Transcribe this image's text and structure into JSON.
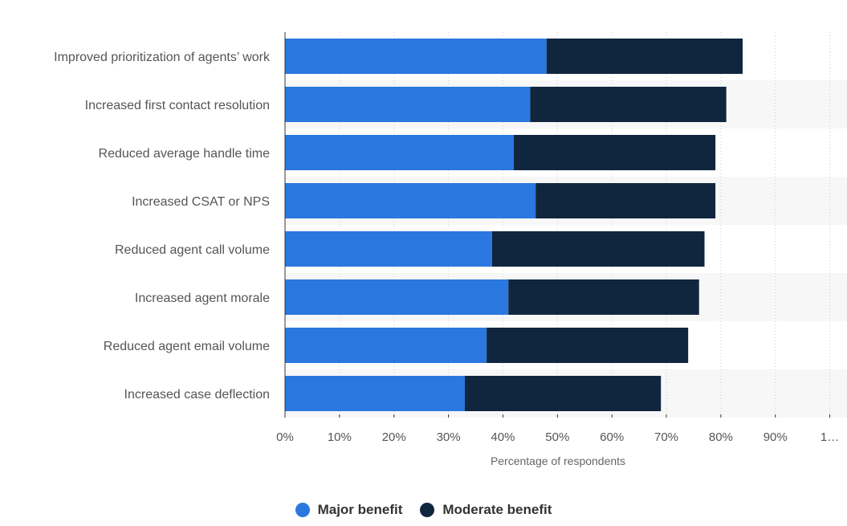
{
  "chart_data": {
    "type": "bar",
    "orientation": "horizontal",
    "stacked": true,
    "categories": [
      "Improved prioritization of agents’ work",
      "Increased first contact resolution",
      "Reduced average handle time",
      "Increased CSAT or NPS",
      "Reduced agent call volume",
      "Increased agent morale",
      "Reduced agent email volume",
      "Increased case deflection"
    ],
    "series": [
      {
        "name": "Major benefit",
        "color": "#2a78df",
        "values": [
          48,
          45,
          42,
          46,
          38,
          41,
          37,
          33
        ]
      },
      {
        "name": "Moderate benefit",
        "color": "#10263f",
        "values": [
          36,
          36,
          37,
          33,
          39,
          35,
          37,
          36
        ]
      }
    ],
    "x_ticks": [
      "0%",
      "10%",
      "20%",
      "30%",
      "40%",
      "50%",
      "60%",
      "70%",
      "80%",
      "90%",
      "1…"
    ],
    "xlabel": "Percentage of respondents",
    "ylabel": "",
    "xlim": [
      0,
      100
    ],
    "grid": true,
    "legend_position": "bottom"
  }
}
